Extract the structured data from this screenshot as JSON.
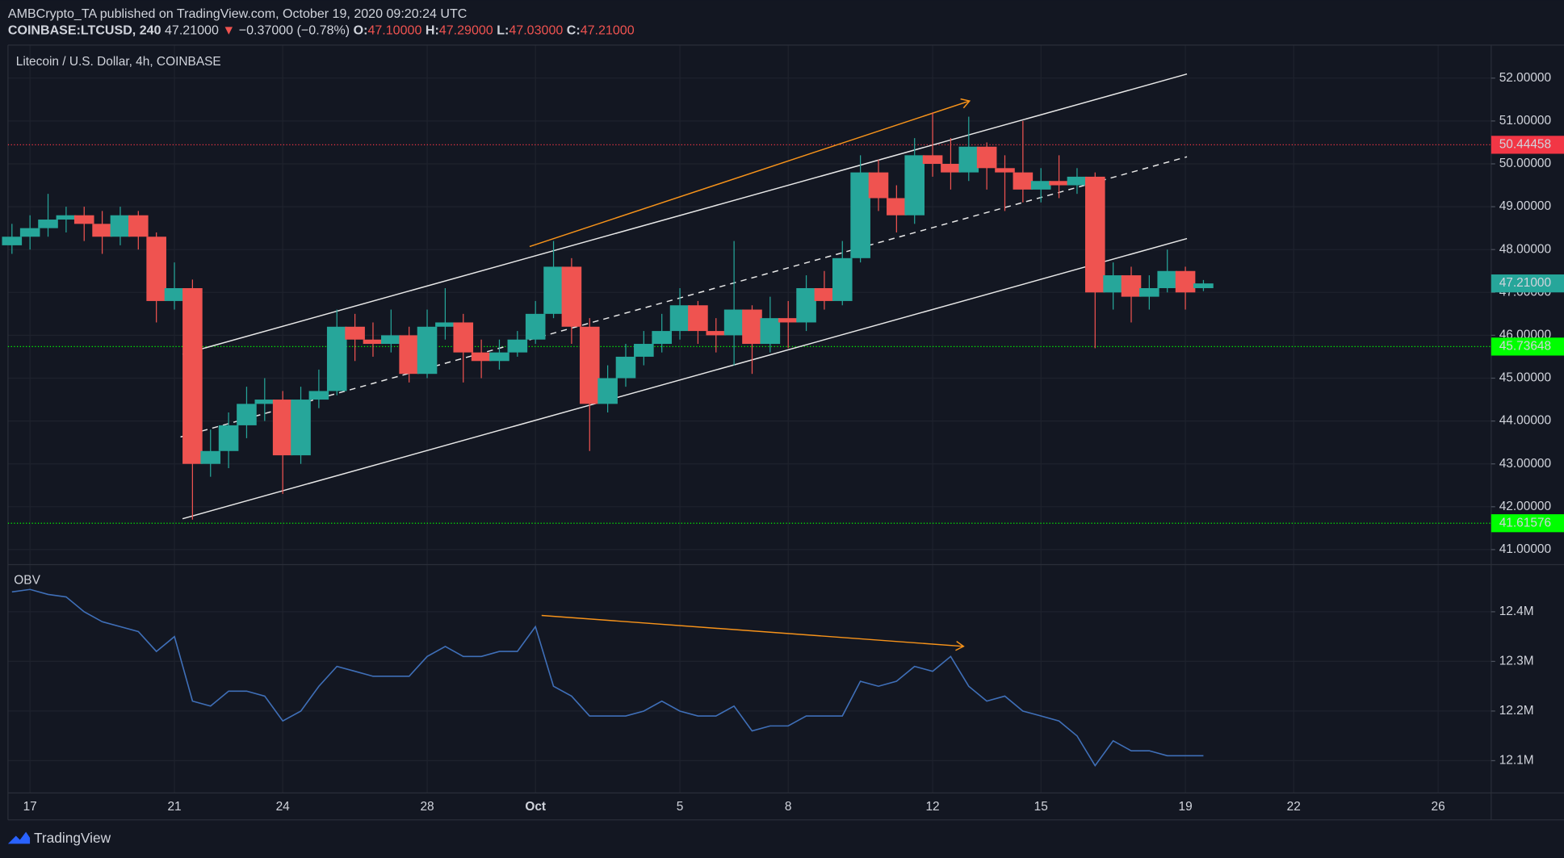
{
  "chart_data": {
    "type": "candlestick",
    "header": {
      "author_line": "AMBCrypto_TA published on TradingView.com, October 19, 2020 09:20:24 UTC",
      "symbol": "COINBASE:LTCUSD, 240",
      "last": {
        "value": 47.21,
        "label": "47.21000"
      },
      "arrow": "▼",
      "change": {
        "value": -0.37,
        "label": "−0.37000"
      },
      "change_pct": {
        "value": -0.78,
        "label": "(−0.78%)"
      },
      "o_label": "O:",
      "o": {
        "value": 47.1,
        "label": "47.10000"
      },
      "h_label": "H:",
      "h": {
        "value": 47.29,
        "label": "47.29000"
      },
      "l_label": "L:",
      "l": {
        "value": 47.03,
        "label": "47.03000"
      },
      "c_label": "C:",
      "c": {
        "value": 47.21,
        "label": "47.21000"
      }
    },
    "title": "Litecoin / U.S. Dollar, 4h, COINBASE",
    "up_color": "#26a69a",
    "down_color": "#ef5350",
    "xlim": [
      -0.61,
      40.47
    ],
    "xticks": [
      {
        "value": 0,
        "label": "17"
      },
      {
        "value": 4,
        "label": "21"
      },
      {
        "value": 7,
        "label": "24"
      },
      {
        "value": 11,
        "label": "28"
      },
      {
        "value": 14,
        "label": "Oct"
      },
      {
        "value": 18,
        "label": "5"
      },
      {
        "value": 21,
        "label": "8"
      },
      {
        "value": 25,
        "label": "12"
      },
      {
        "value": 28,
        "label": "15"
      },
      {
        "value": 32,
        "label": "19"
      },
      {
        "value": 35,
        "label": "22"
      },
      {
        "value": 39,
        "label": "26"
      }
    ],
    "ylim": [
      40.65,
      52.77
    ],
    "yticks": [
      {
        "value": 41,
        "label": "41.00000"
      },
      {
        "value": 42,
        "label": "42.00000"
      },
      {
        "value": 43,
        "label": "43.00000"
      },
      {
        "value": 44,
        "label": "44.00000"
      },
      {
        "value": 45,
        "label": "45.00000"
      },
      {
        "value": 46,
        "label": "46.00000"
      },
      {
        "value": 47,
        "label": "47.00000"
      },
      {
        "value": 48,
        "label": "48.00000"
      },
      {
        "value": 49,
        "label": "49.00000"
      },
      {
        "value": 50,
        "label": "50.00000"
      },
      {
        "value": 51,
        "label": "51.00000"
      },
      {
        "value": 52,
        "label": "52.00000"
      }
    ],
    "grid": true,
    "candles": {
      "x": [
        -0.5,
        0,
        0.5,
        1,
        1.5,
        2,
        2.5,
        3,
        3.5,
        4,
        4.5,
        5,
        5.5,
        6,
        6.5,
        7,
        7.5,
        8,
        8.5,
        9,
        9.5,
        10,
        10.5,
        11,
        11.5,
        12,
        12.5,
        13,
        13.5,
        14,
        14.5,
        15,
        15.5,
        16,
        16.5,
        17,
        17.5,
        18,
        18.5,
        19,
        19.5,
        20,
        20.5,
        21,
        21.5,
        22,
        22.5,
        23,
        23.5,
        24,
        24.5,
        25,
        25.5,
        26,
        26.5,
        27,
        27.5,
        28,
        28.5,
        29,
        29.5,
        30,
        30.5,
        31,
        31.5,
        32,
        32.5
      ],
      "open": [
        48.1,
        48.3,
        48.5,
        48.7,
        48.8,
        48.6,
        48.3,
        48.8,
        48.3,
        46.8,
        47.1,
        43.0,
        43.3,
        43.9,
        44.4,
        44.5,
        43.2,
        44.5,
        44.7,
        46.2,
        45.9,
        45.8,
        46.0,
        45.1,
        46.2,
        46.3,
        45.6,
        45.4,
        45.6,
        45.9,
        46.5,
        47.6,
        46.2,
        44.4,
        45.0,
        45.5,
        45.8,
        46.1,
        46.7,
        46.1,
        46.0,
        46.6,
        45.8,
        46.4,
        46.3,
        47.1,
        46.8,
        47.8,
        49.8,
        49.2,
        48.8,
        50.2,
        50.0,
        49.8,
        50.4,
        49.9,
        49.8,
        49.4,
        49.6,
        49.5,
        49.7,
        47.0,
        47.4,
        46.9,
        47.1,
        47.5,
        47.1
      ],
      "high": [
        48.6,
        48.8,
        49.3,
        49.0,
        49.0,
        48.9,
        49.0,
        48.9,
        48.4,
        47.7,
        47.3,
        43.8,
        44.2,
        44.8,
        45.0,
        44.7,
        44.8,
        45.2,
        46.6,
        46.5,
        46.3,
        46.6,
        46.2,
        46.6,
        47.1,
        46.5,
        45.9,
        45.9,
        46.1,
        46.8,
        48.2,
        47.8,
        46.4,
        45.3,
        45.8,
        46.1,
        46.5,
        47.1,
        46.8,
        46.4,
        48.2,
        46.7,
        46.9,
        46.8,
        47.4,
        47.5,
        48.2,
        50.2,
        50.1,
        49.5,
        50.6,
        51.2,
        50.6,
        51.1,
        50.5,
        50.2,
        51.0,
        49.9,
        50.2,
        49.9,
        49.8,
        47.7,
        47.6,
        47.4,
        48.0,
        47.6,
        47.29
      ],
      "low": [
        47.9,
        48.0,
        48.3,
        48.4,
        48.2,
        47.9,
        48.1,
        48.0,
        46.3,
        46.6,
        41.7,
        42.7,
        42.9,
        43.6,
        44.0,
        42.3,
        43.0,
        44.3,
        44.6,
        45.4,
        45.5,
        45.6,
        44.9,
        45.0,
        45.9,
        44.9,
        45.0,
        45.2,
        45.5,
        45.8,
        46.4,
        45.8,
        43.3,
        44.2,
        44.8,
        45.3,
        45.6,
        45.9,
        45.8,
        45.6,
        45.3,
        45.1,
        45.6,
        45.7,
        46.1,
        46.6,
        46.7,
        47.7,
        48.9,
        48.4,
        48.6,
        49.7,
        49.4,
        49.6,
        49.4,
        48.9,
        49.1,
        49.1,
        49.2,
        49.3,
        45.7,
        46.6,
        46.3,
        46.6,
        47.0,
        46.6,
        47.03
      ],
      "close": [
        48.3,
        48.5,
        48.7,
        48.8,
        48.6,
        48.3,
        48.8,
        48.3,
        46.8,
        47.1,
        43.0,
        43.3,
        43.9,
        44.4,
        44.5,
        43.2,
        44.5,
        44.7,
        46.2,
        45.9,
        45.8,
        46.0,
        45.1,
        46.2,
        46.3,
        45.6,
        45.4,
        45.6,
        45.9,
        46.5,
        47.6,
        46.2,
        44.4,
        45.0,
        45.5,
        45.8,
        46.1,
        46.7,
        46.1,
        46.0,
        46.6,
        45.8,
        46.4,
        46.3,
        47.1,
        46.8,
        47.8,
        49.8,
        49.2,
        48.8,
        50.2,
        50.0,
        49.8,
        50.4,
        49.9,
        49.8,
        49.4,
        49.6,
        49.5,
        49.7,
        47.0,
        47.4,
        46.9,
        47.1,
        47.5,
        47.0,
        47.21
      ]
    },
    "levels": [
      {
        "value": 50.44458,
        "color": "#f23645",
        "text_color": "#ffffff"
      },
      {
        "value": {
          "value": 47.21,
          "label": "47.21000"
        },
        "color": "#26a69a",
        "text_color": "#ffffff",
        "line": false
      },
      {
        "value": 45.73648,
        "color": "#00ff00",
        "text_color": "#000000"
      },
      {
        "value": 41.61576,
        "color": "#00ff00",
        "text_color": "#000000"
      }
    ],
    "obv": {
      "name": "OBV",
      "color": "#3f6fb8",
      "ylim": [
        12035000,
        12495000
      ],
      "yticks": [
        {
          "value": 12100000,
          "label": "12.1M"
        },
        {
          "value": 12200000,
          "label": "12.2M"
        },
        {
          "value": 12300000,
          "label": "12.3M"
        },
        {
          "value": 12400000,
          "label": "12.4M"
        }
      ],
      "values": [
        12440000,
        12445000,
        12435000,
        12430000,
        12400000,
        12380000,
        12370000,
        12360000,
        12320000,
        12350000,
        12220000,
        12210000,
        12240000,
        12240000,
        12230000,
        12180000,
        12200000,
        12250000,
        12290000,
        12280000,
        12270000,
        12270000,
        12270000,
        12310000,
        12330000,
        12310000,
        12310000,
        12320000,
        12320000,
        12370000,
        12250000,
        12230000,
        12190000,
        12190000,
        12190000,
        12200000,
        12220000,
        12200000,
        12190000,
        12190000,
        12210000,
        12160000,
        12170000,
        12170000,
        12190000,
        12190000,
        12190000,
        12260000,
        12250000,
        12260000,
        12290000,
        12280000,
        12310000,
        12250000,
        12220000,
        12230000,
        12200000,
        12190000,
        12180000,
        12150000,
        12090000,
        12140000,
        12120000,
        12120000,
        12110000,
        12110000,
        12110000
      ]
    },
    "brand": "TradingView"
  }
}
